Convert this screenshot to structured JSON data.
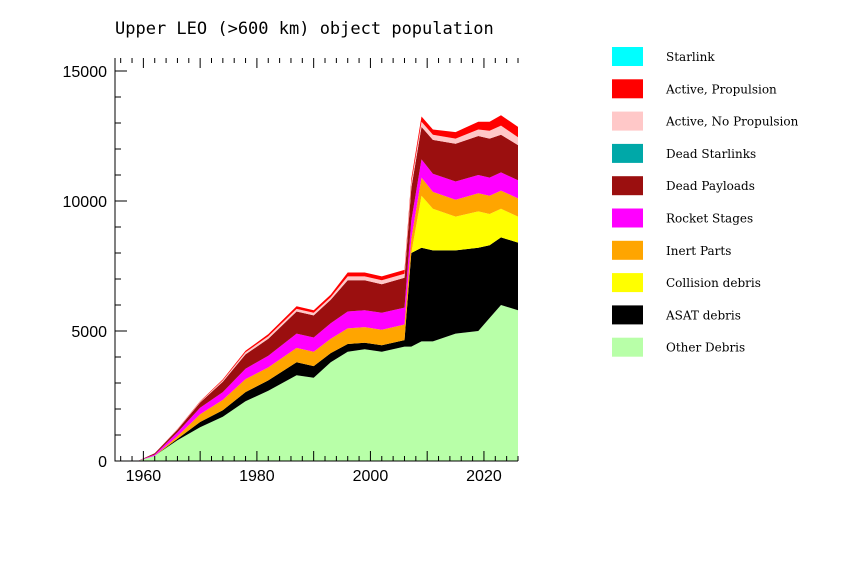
{
  "chart_data": {
    "type": "area",
    "stacked": true,
    "title": "Upper LEO (>600 km) object population",
    "xlabel": "",
    "ylabel": "",
    "xlim": [
      1955,
      2026
    ],
    "ylim": [
      0,
      15500
    ],
    "x_ticks": [
      {
        "value": 1960,
        "label": "1960"
      },
      {
        "value": 1980,
        "label": "1980"
      },
      {
        "value": 2000,
        "label": "2000"
      },
      {
        "value": 2020,
        "label": "2020"
      }
    ],
    "y_ticks": [
      {
        "value": 0,
        "label": "0"
      },
      {
        "value": 5000,
        "label": "5000"
      },
      {
        "value": 10000,
        "label": "10000"
      },
      {
        "value": 15000,
        "label": "15000"
      }
    ],
    "legend_position": "right",
    "x": [
      1959,
      1962,
      1966,
      1970,
      1974,
      1978,
      1982,
      1987,
      1990,
      1993,
      1996,
      1999,
      2002,
      2006,
      2007.2,
      2009,
      2011,
      2015,
      2019,
      2021,
      2023,
      2026
    ],
    "series": [
      {
        "name": "Other Debris",
        "color": "#b8ffa8",
        "values": [
          0,
          200,
          800,
          1300,
          1700,
          2300,
          2700,
          3300,
          3200,
          3800,
          4200,
          4300,
          4200,
          4400,
          4400,
          4600,
          4600,
          4900,
          5000,
          5500,
          6000,
          5800
        ]
      },
      {
        "name": "ASAT debris",
        "color": "#000000",
        "values": [
          0,
          0,
          50,
          200,
          250,
          350,
          400,
          500,
          450,
          350,
          300,
          250,
          250,
          250,
          3600,
          3600,
          3500,
          3200,
          3200,
          2800,
          2600,
          2600
        ]
      },
      {
        "name": "Collision debris",
        "color": "#ffff00",
        "values": [
          0,
          0,
          0,
          0,
          0,
          0,
          0,
          0,
          0,
          0,
          0,
          0,
          0,
          0,
          0,
          2000,
          1600,
          1300,
          1400,
          1200,
          1100,
          1000
        ]
      },
      {
        "name": "Inert Parts",
        "color": "#ffa500",
        "values": [
          0,
          0,
          100,
          300,
          400,
          500,
          500,
          550,
          550,
          550,
          600,
          600,
          600,
          600,
          550,
          700,
          650,
          650,
          700,
          700,
          700,
          700
        ]
      },
      {
        "name": "Rocket Stages",
        "color": "#ff00ff",
        "values": [
          0,
          50,
          150,
          250,
          300,
          400,
          450,
          550,
          550,
          600,
          650,
          650,
          650,
          650,
          700,
          700,
          700,
          700,
          700,
          700,
          700,
          700
        ]
      },
      {
        "name": "Dead Starlinks",
        "color": "#00a8a8",
        "values": [
          0,
          0,
          0,
          0,
          0,
          0,
          0,
          0,
          0,
          0,
          0,
          0,
          0,
          0,
          0,
          0,
          0,
          0,
          0,
          0,
          0,
          0
        ]
      },
      {
        "name": "Dead Payloads",
        "color": "#9b0f0f",
        "values": [
          0,
          50,
          100,
          200,
          400,
          550,
          650,
          850,
          850,
          900,
          1200,
          1150,
          1100,
          1150,
          1250,
          1250,
          1300,
          1450,
          1500,
          1500,
          1450,
          1350
        ]
      },
      {
        "name": "Active, No Propulsion",
        "color": "#ffc8c8",
        "values": [
          0,
          0,
          20,
          30,
          50,
          80,
          100,
          100,
          100,
          100,
          150,
          150,
          150,
          150,
          200,
          200,
          200,
          200,
          250,
          300,
          350,
          300
        ]
      },
      {
        "name": "Active, Propulsion",
        "color": "#ff0000",
        "values": [
          0,
          0,
          10,
          20,
          40,
          60,
          80,
          100,
          100,
          100,
          150,
          150,
          150,
          150,
          150,
          200,
          200,
          250,
          300,
          350,
          400,
          400
        ]
      },
      {
        "name": "Starlink",
        "color": "#00ffff",
        "values": [
          0,
          0,
          0,
          0,
          0,
          0,
          0,
          0,
          0,
          0,
          0,
          0,
          0,
          0,
          0,
          0,
          0,
          0,
          0,
          0,
          0,
          0
        ]
      }
    ],
    "legend": [
      {
        "label": "Starlink",
        "color": "#00ffff"
      },
      {
        "label": "Active, Propulsion",
        "color": "#ff0000"
      },
      {
        "label": "Active, No Propulsion",
        "color": "#ffc8c8"
      },
      {
        "label": "Dead Starlinks",
        "color": "#00a8a8"
      },
      {
        "label": "Dead Payloads",
        "color": "#9b0f0f"
      },
      {
        "label": "Rocket Stages",
        "color": "#ff00ff"
      },
      {
        "label": "Inert Parts",
        "color": "#ffa500"
      },
      {
        "label": "Collision debris",
        "color": "#ffff00"
      },
      {
        "label": "ASAT debris",
        "color": "#000000"
      },
      {
        "label": "Other Debris",
        "color": "#b8ffa8"
      }
    ]
  }
}
